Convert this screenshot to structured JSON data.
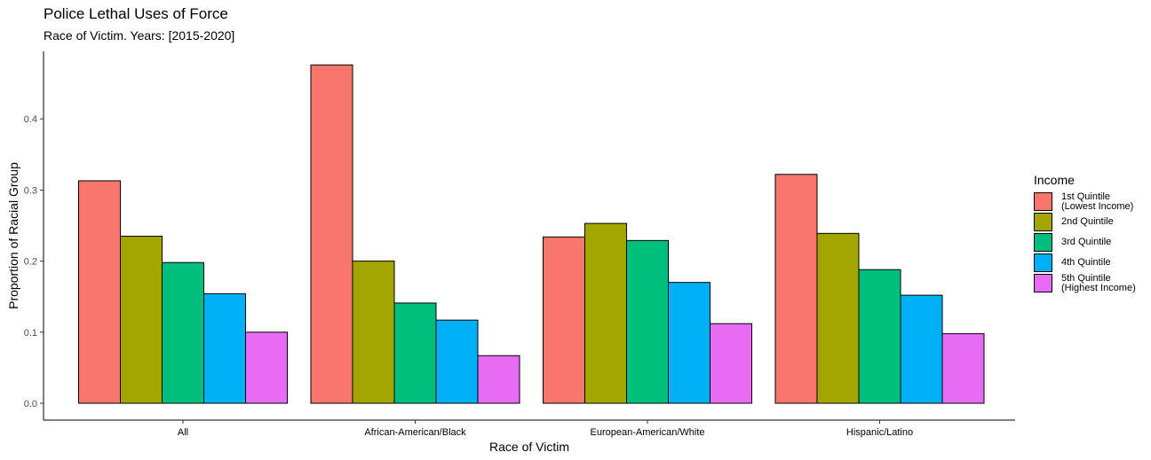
{
  "chart_data": {
    "type": "bar",
    "title": "Police Lethal Uses of Force",
    "subtitle": "Race of Victim. Years: [2015-2020]",
    "xlabel": "Race of Victim",
    "ylabel": "Proportion of Racial Group",
    "categories": [
      "All",
      "African-American/Black",
      "European-American/White",
      "Hispanic/Latino"
    ],
    "y_ticks": [
      "0.0",
      "0.1",
      "0.2",
      "0.3",
      "0.4"
    ],
    "ylim": [
      0,
      0.5
    ],
    "legend_title": "Income",
    "legend_position": "right",
    "grid": false,
    "series": [
      {
        "name": "1st Quintile\n(Lowest Income)",
        "color": "#F8766D",
        "values": [
          0.313,
          0.476,
          0.234,
          0.322
        ]
      },
      {
        "name": "2nd Quintile",
        "color": "#A3A500",
        "values": [
          0.235,
          0.2,
          0.253,
          0.239
        ]
      },
      {
        "name": "3rd Quintile",
        "color": "#00BF7D",
        "values": [
          0.198,
          0.141,
          0.229,
          0.188
        ]
      },
      {
        "name": "4th Quintile",
        "color": "#00B0F6",
        "values": [
          0.154,
          0.117,
          0.17,
          0.152
        ]
      },
      {
        "name": "5th Quintile\n(Highest Income)",
        "color": "#E76BF3",
        "values": [
          0.1,
          0.067,
          0.112,
          0.098
        ]
      }
    ]
  }
}
